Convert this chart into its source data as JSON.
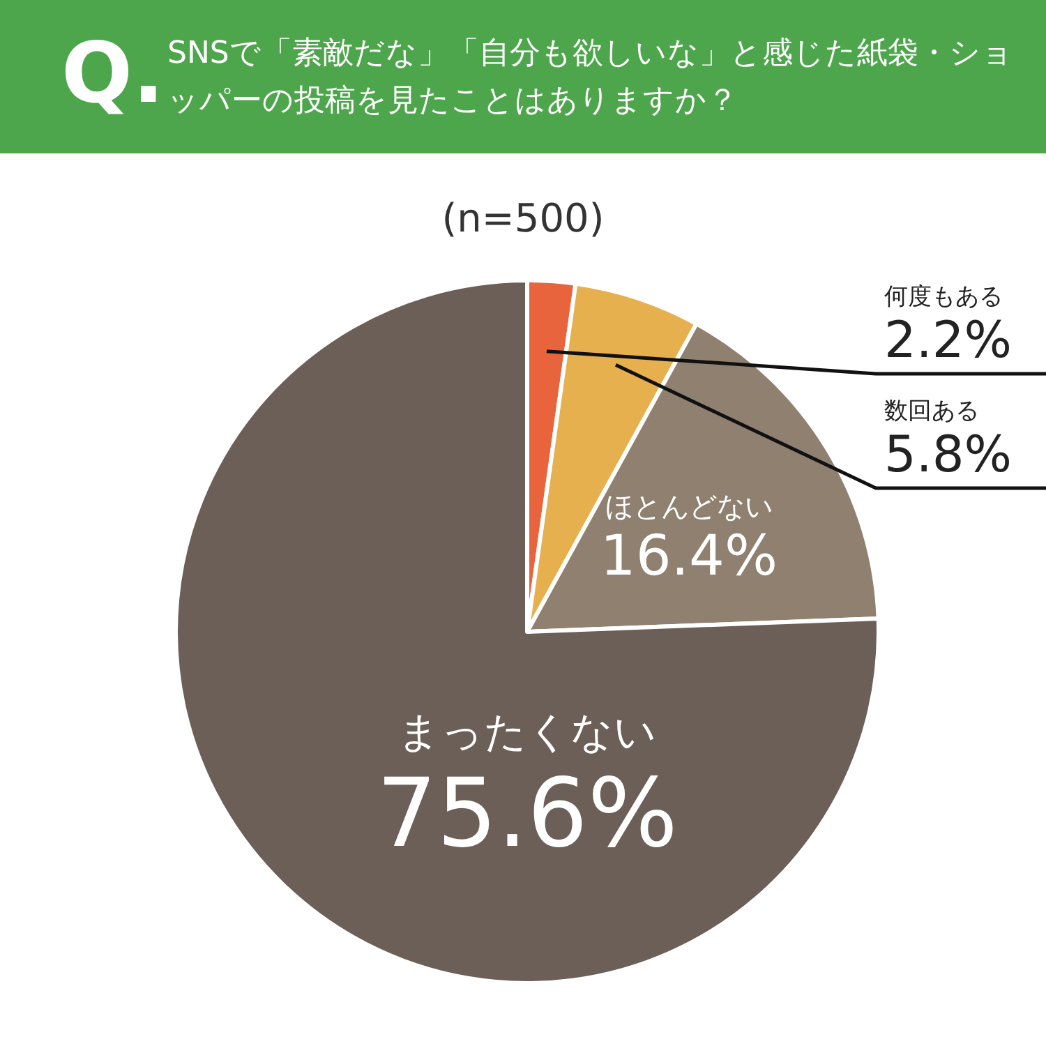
{
  "chart_data": {
    "type": "pie",
    "title": "SNSで「素敵だな」「自分も欲しいな」と感じた紙袋・ショッパーの投稿を見たことはありますか？",
    "subtitle": "(n=500)",
    "annotations": [
      "Q."
    ],
    "categories": [
      "何度もある",
      "数回ある",
      "ほとんどない",
      "まったくない"
    ],
    "values": [
      2.2,
      5.8,
      16.4,
      75.6
    ],
    "value_labels": [
      "2.2%",
      "5.8%",
      "16.4%",
      "75.6%"
    ],
    "colors": [
      "#e8643c",
      "#e6b04e",
      "#8f8070",
      "#6b5f58"
    ],
    "legend": false
  }
}
